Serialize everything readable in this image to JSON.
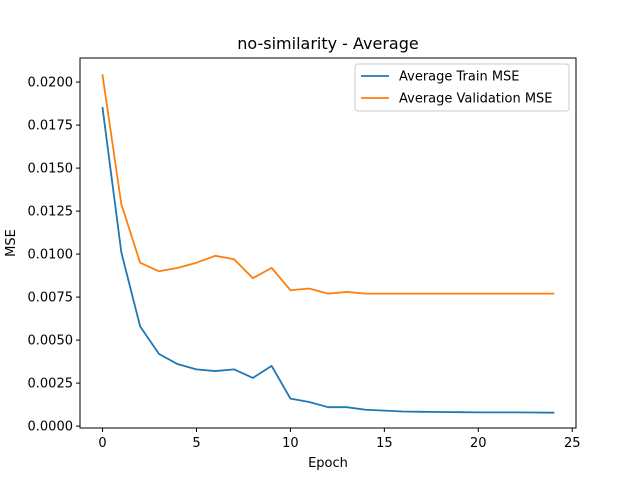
{
  "chart_data": {
    "type": "line",
    "title": "no-similarity - Average",
    "xlabel": "Epoch",
    "ylabel": "MSE",
    "xlim": [
      -1.2,
      25.2
    ],
    "ylim": [
      -0.00011,
      0.0214
    ],
    "xticks": [
      0,
      5,
      10,
      15,
      20,
      25
    ],
    "xtick_labels": [
      "0",
      "5",
      "10",
      "15",
      "20",
      "25"
    ],
    "yticks": [
      0.0,
      0.0025,
      0.005,
      0.0075,
      0.01,
      0.0125,
      0.015,
      0.0175,
      0.02
    ],
    "ytick_labels": [
      "0.0000",
      "0.0025",
      "0.0050",
      "0.0075",
      "0.0100",
      "0.0125",
      "0.0150",
      "0.0175",
      "0.0200"
    ],
    "grid": false,
    "legend_position": "top-right",
    "x": [
      0,
      1,
      2,
      3,
      4,
      5,
      6,
      7,
      8,
      9,
      10,
      11,
      12,
      13,
      14,
      15,
      16,
      17,
      18,
      19,
      20,
      21,
      22,
      23,
      24
    ],
    "series": [
      {
        "name": "Average Train MSE",
        "color": "#1f77b4",
        "values": [
          0.0185,
          0.0101,
          0.0058,
          0.0042,
          0.0036,
          0.0033,
          0.0032,
          0.0033,
          0.0028,
          0.0035,
          0.0016,
          0.0014,
          0.0011,
          0.0011,
          0.00095,
          0.0009,
          0.00085,
          0.00083,
          0.00082,
          0.00081,
          0.0008,
          0.0008,
          0.0008,
          0.00079,
          0.00078
        ]
      },
      {
        "name": "Average Validation MSE",
        "color": "#ff7f0e",
        "values": [
          0.0204,
          0.0129,
          0.0095,
          0.009,
          0.0092,
          0.0095,
          0.0099,
          0.0097,
          0.0086,
          0.0092,
          0.0079,
          0.008,
          0.0077,
          0.0078,
          0.0077,
          0.0077,
          0.0077,
          0.0077,
          0.0077,
          0.0077,
          0.0077,
          0.0077,
          0.0077,
          0.0077,
          0.0077
        ]
      }
    ]
  }
}
